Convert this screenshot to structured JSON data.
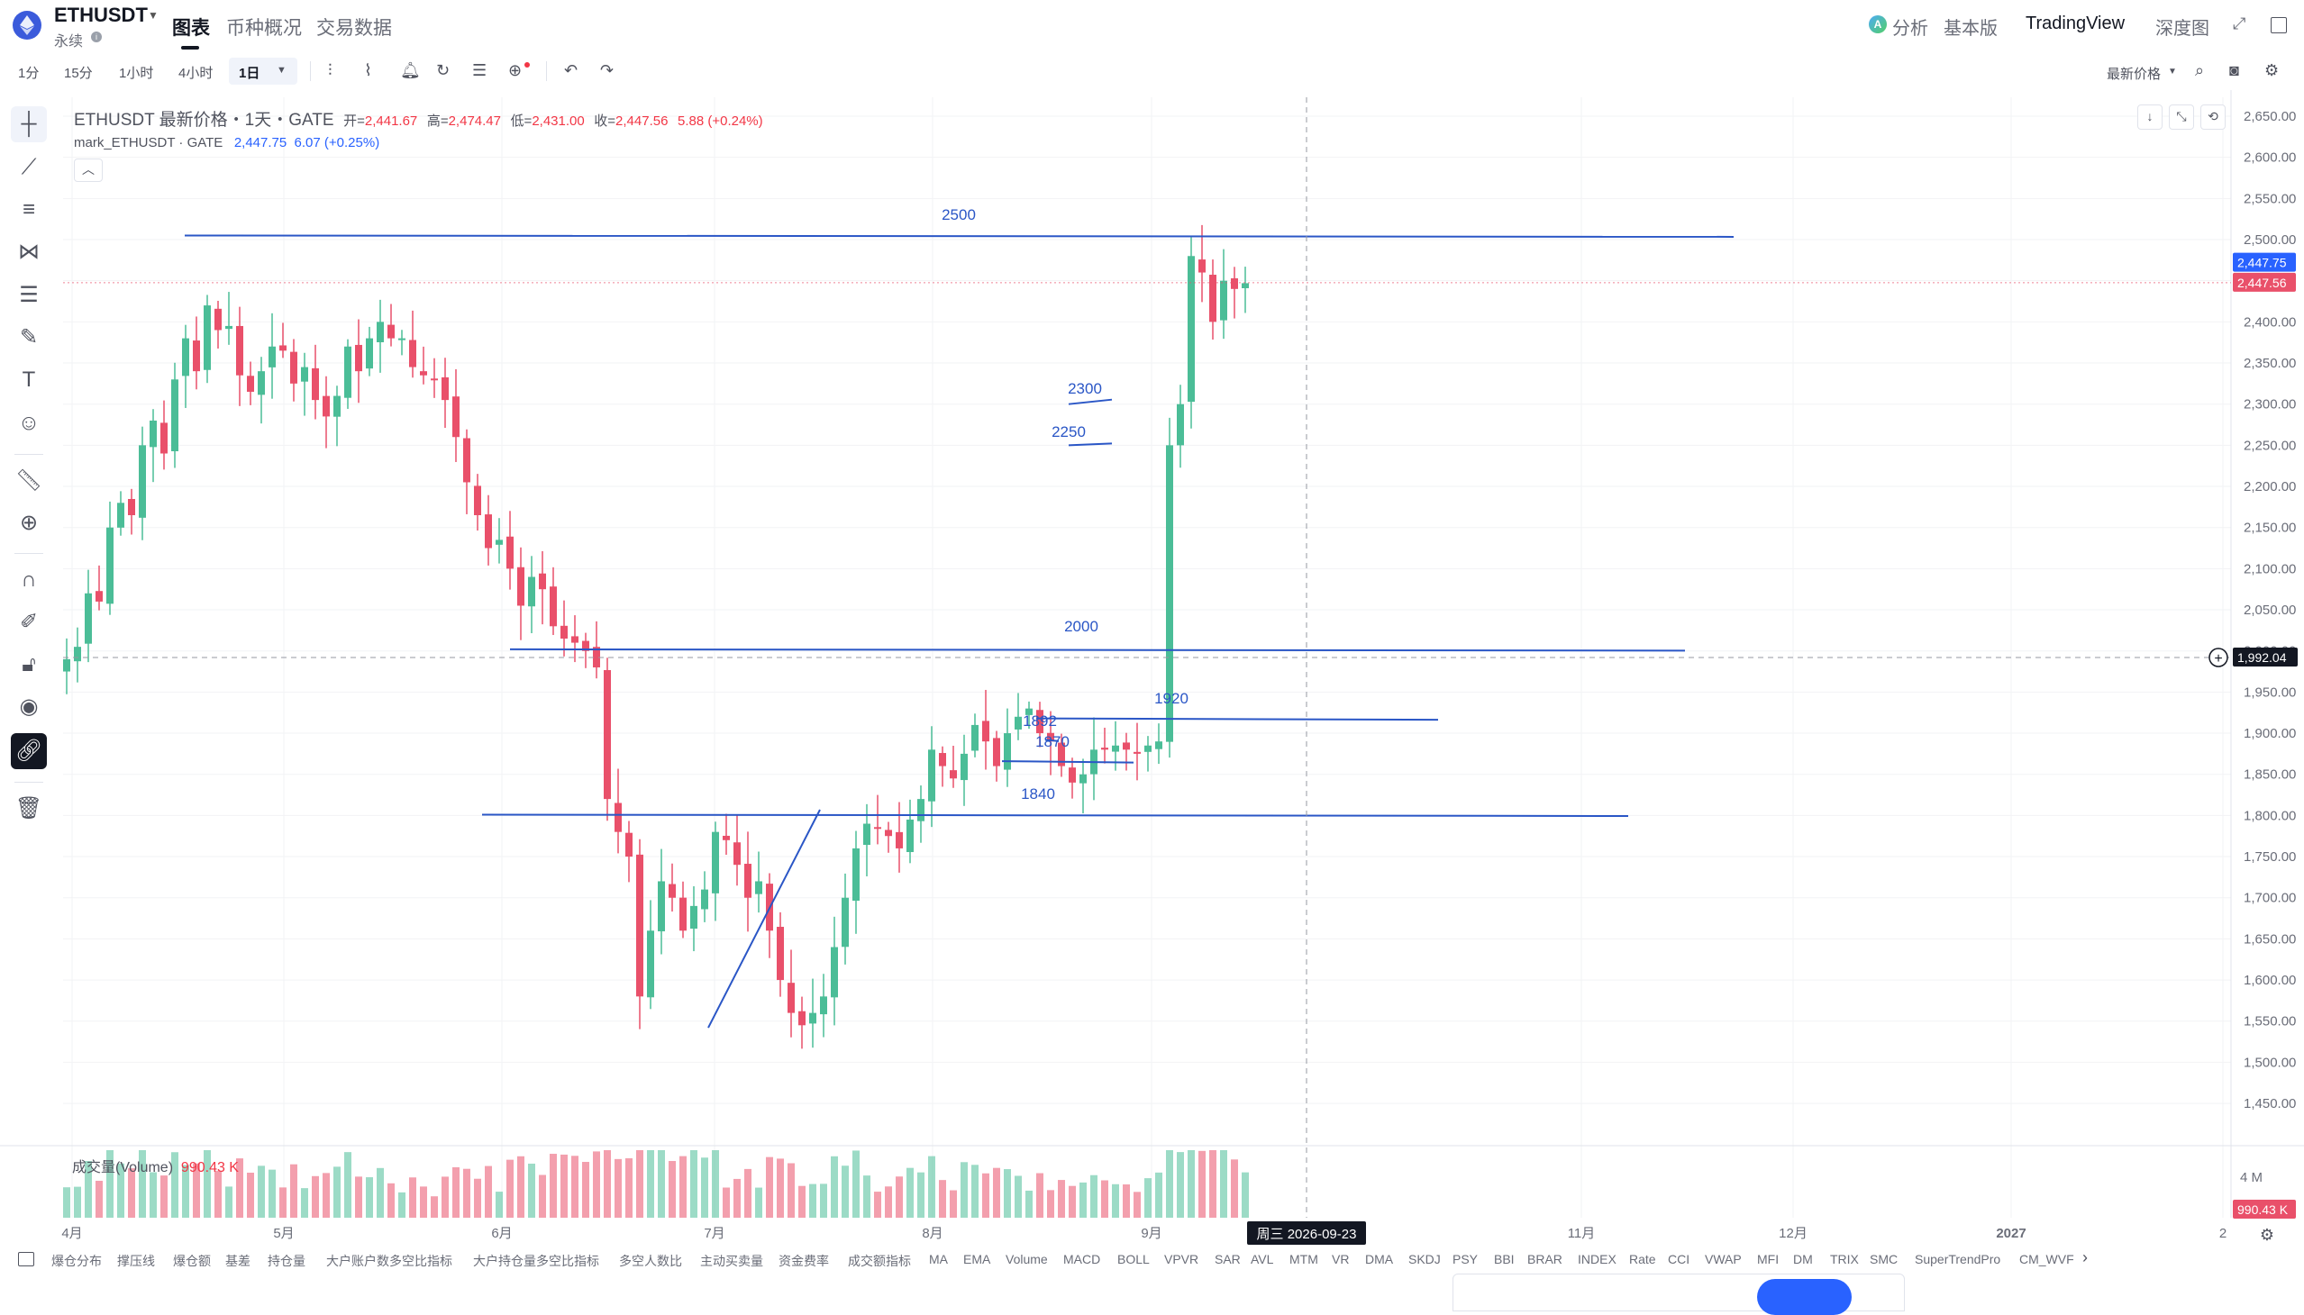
{
  "header": {
    "symbol": "ETHUSDT",
    "contract_type": "永续",
    "tabs": [
      "图表",
      "币种概况",
      "交易数据"
    ],
    "active_tab": "图表",
    "right_tools": {
      "analysis": "分析",
      "basic": "基本版",
      "tradingview": "TradingView",
      "depth": "深度图"
    }
  },
  "toolbar": {
    "timeframes": [
      "1分",
      "15分",
      "1小时",
      "4小时",
      "1日"
    ],
    "active_timeframe": "1日",
    "price_type": "最新价格"
  },
  "legend": {
    "title": "ETHUSDT 最新价格・1天・GATE",
    "open_label": "开=",
    "open": "2,441.67",
    "high_label": "高=",
    "high": "2,474.47",
    "low_label": "低=",
    "low": "2,431.00",
    "close_label": "收=",
    "close": "2,447.56",
    "change": "5.88 (+0.24%)",
    "mark_name": "mark_ETHUSDT · GATE",
    "mark_value": "2,447.75",
    "mark_change": "6.07 (+0.25%)"
  },
  "volume": {
    "label": "成交量(Volume)",
    "value": "990.43 K",
    "axis_label": "4 M",
    "badge": "990.43 K"
  },
  "chart_data": {
    "type": "candlestick",
    "symbol": "ETHUSDT",
    "interval": "1天",
    "y_ticks": [
      "2,650.00",
      "2,600.00",
      "2,550.00",
      "2,500.00",
      "2,450.00",
      "2,400.00",
      "2,350.00",
      "2,300.00",
      "2,250.00",
      "2,200.00",
      "2,150.00",
      "2,100.00",
      "2,050.00",
      "2,000.00",
      "1,950.00",
      "1,900.00",
      "1,850.00",
      "1,800.00",
      "1,750.00",
      "1,700.00",
      "1,650.00",
      "1,600.00",
      "1,550.00",
      "1,500.00",
      "1,450.00"
    ],
    "ylim": [
      1450,
      2650
    ],
    "x_ticks": [
      "4月",
      "5月",
      "6月",
      "7月",
      "8月",
      "9月",
      "11月",
      "12月",
      "2027",
      "2"
    ],
    "crosshair_date": "周三 2026-09-23",
    "crosshair_price": "1,992.04",
    "mark_price_badge": "2,447.75",
    "last_price_badge": "2,447.56",
    "horizontal_levels": [
      {
        "label": "2500",
        "price": 2505
      },
      {
        "label": "2300",
        "price": 2300
      },
      {
        "label": "2250",
        "price": 2250
      },
      {
        "label": "2000",
        "price": 2002
      },
      {
        "label": "1920",
        "price": 1918
      },
      {
        "label": "1892",
        "price": 1892
      },
      {
        "label": "1870",
        "price": 1866
      },
      {
        "label": "1840",
        "price": 1801
      }
    ],
    "trendline": {
      "from_price": 1542,
      "to_price": 1807
    },
    "closes": [
      1990,
      2005,
      2070,
      2060,
      2150,
      2180,
      2165,
      2250,
      2280,
      2240,
      2330,
      2380,
      2340,
      2420,
      2390,
      2395,
      2335,
      2315,
      2340,
      2370,
      2365,
      2325,
      2345,
      2305,
      2285,
      2310,
      2370,
      2340,
      2380,
      2400,
      2380,
      2380,
      2345,
      2335,
      2330,
      2305,
      2260,
      2205,
      2165,
      2125,
      2135,
      2100,
      2055,
      2090,
      2075,
      2030,
      2015,
      2010,
      2000,
      1980,
      1820,
      1780,
      1750,
      1580,
      1660,
      1720,
      1700,
      1660,
      1690,
      1710,
      1780,
      1770,
      1740,
      1700,
      1720,
      1660,
      1600,
      1560,
      1545,
      1560,
      1580,
      1640,
      1700,
      1760,
      1790,
      1785,
      1775,
      1760,
      1795,
      1820,
      1880,
      1860,
      1845,
      1875,
      1910,
      1890,
      1860,
      1900,
      1920,
      1930,
      1900,
      1890,
      1860,
      1840,
      1850,
      1880,
      1880,
      1885,
      1880,
      1875,
      1885,
      1890,
      2250,
      2300,
      2480,
      2460,
      2400,
      2450,
      2440,
      2447
    ]
  },
  "indicators": [
    "爆仓分布",
    "撑压线",
    "爆仓额",
    "基差",
    "持仓量",
    "大户账户数多空比指标",
    "大户持仓量多空比指标",
    "多空人数比",
    "主动买卖量",
    "资金费率",
    "成交额指标",
    "MA",
    "EMA",
    "Volume",
    "MACD",
    "BOLL",
    "VPVR",
    "SAR",
    "AVL",
    "MTM",
    "VR",
    "DMA",
    "SKDJ",
    "PSY",
    "BBI",
    "BRAR",
    "INDEX",
    "Rate",
    "CCI",
    "VWAP",
    "MFI",
    "DM",
    "TRIX",
    "SMC",
    "SuperTrendPro",
    "CM_WVF"
  ],
  "icons": {
    "left_tools": [
      "crosshair-icon",
      "trend-line-icon",
      "parallel-channel-icon",
      "pattern-icon",
      "fib-icon",
      "brush-icon",
      "text-icon",
      "emoji-icon",
      "ruler-icon",
      "zoom-icon",
      "magnet-icon",
      "lock-drawing-icon",
      "lock-icon",
      "eye-icon",
      "link-icon",
      "trash-icon"
    ]
  },
  "colors": {
    "up": "#4bbd97",
    "down": "#e9506a",
    "drawing": "#2a56c6",
    "accent": "#2962ff"
  }
}
